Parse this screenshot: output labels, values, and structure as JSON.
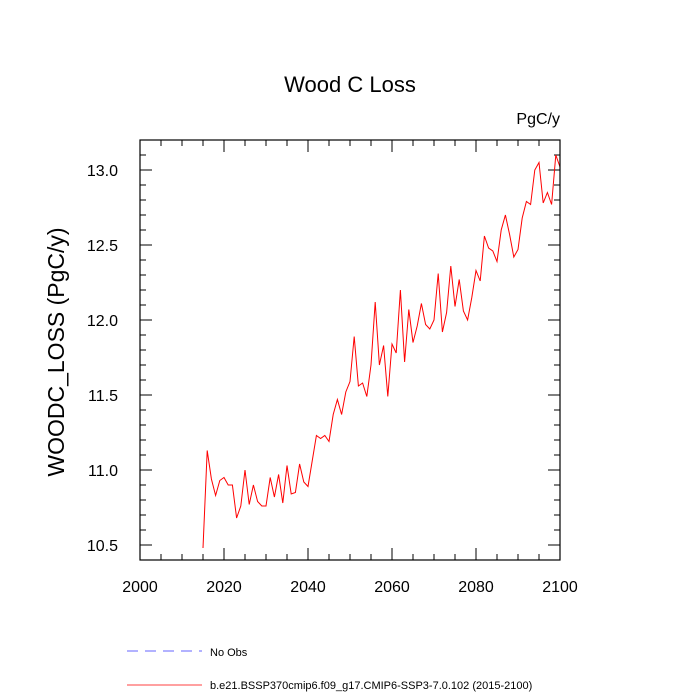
{
  "chart_data": {
    "type": "line",
    "title": "Wood C Loss",
    "units_label": "PgC/y",
    "ylabel": "WOODC_LOSS  (PgC/y)",
    "xlabel": "",
    "xlim": [
      2000,
      2100
    ],
    "ylim": [
      10.4,
      13.2
    ],
    "x_ticks": [
      2000,
      2020,
      2040,
      2060,
      2080,
      2100
    ],
    "y_ticks": [
      10.5,
      11.0,
      11.5,
      12.0,
      12.5,
      13.0
    ],
    "x_tick_labels": [
      "2000",
      "2020",
      "2040",
      "2060",
      "2080",
      "2100"
    ],
    "y_tick_labels": [
      "10.5",
      "11.0",
      "11.5",
      "12.0",
      "12.5",
      "13.0"
    ],
    "grid": false,
    "legend_position": "bottom",
    "series": [
      {
        "name": "b.e21.BSSP370cmip6.f09_g17.CMIP6-SSP3-7.0.102 (2015-2100)",
        "color": "#ff0000",
        "dash": "solid",
        "x": [
          2015,
          2016,
          2017,
          2018,
          2019,
          2020,
          2021,
          2022,
          2023,
          2024,
          2025,
          2026,
          2027,
          2028,
          2029,
          2030,
          2031,
          2032,
          2033,
          2034,
          2035,
          2036,
          2037,
          2038,
          2039,
          2040,
          2041,
          2042,
          2043,
          2044,
          2045,
          2046,
          2047,
          2048,
          2049,
          2050,
          2051,
          2052,
          2053,
          2054,
          2055,
          2056,
          2057,
          2058,
          2059,
          2060,
          2061,
          2062,
          2063,
          2064,
          2065,
          2066,
          2067,
          2068,
          2069,
          2070,
          2071,
          2072,
          2073,
          2074,
          2075,
          2076,
          2077,
          2078,
          2079,
          2080,
          2081,
          2082,
          2083,
          2084,
          2085,
          2086,
          2087,
          2088,
          2089,
          2090,
          2091,
          2092,
          2093,
          2094,
          2095,
          2096,
          2097,
          2098,
          2099,
          2100
        ],
        "values": [
          10.48,
          11.13,
          10.94,
          10.83,
          10.93,
          10.95,
          10.9,
          10.9,
          10.68,
          10.76,
          11.0,
          10.77,
          10.9,
          10.79,
          10.76,
          10.76,
          10.95,
          10.82,
          10.97,
          10.78,
          11.03,
          10.84,
          10.85,
          11.04,
          10.92,
          10.89,
          11.06,
          11.23,
          11.21,
          11.23,
          11.19,
          11.37,
          11.47,
          11.37,
          11.52,
          11.59,
          11.89,
          11.56,
          11.58,
          11.49,
          11.7,
          12.12,
          11.7,
          11.83,
          11.49,
          11.84,
          11.78,
          12.2,
          11.72,
          12.07,
          11.85,
          11.96,
          12.11,
          11.97,
          11.94,
          12.0,
          12.31,
          11.92,
          12.05,
          12.36,
          12.09,
          12.27,
          12.06,
          12.0,
          12.15,
          12.33,
          12.26,
          12.56,
          12.48,
          12.46,
          12.39,
          12.6,
          12.7,
          12.57,
          12.42,
          12.47,
          12.68,
          12.79,
          12.77,
          13.0,
          13.05,
          12.78,
          12.85,
          12.77,
          13.1,
          13.02
        ]
      },
      {
        "name": "No Obs",
        "color": "#3333ff",
        "dash": "dashed",
        "x": [],
        "values": []
      }
    ]
  }
}
